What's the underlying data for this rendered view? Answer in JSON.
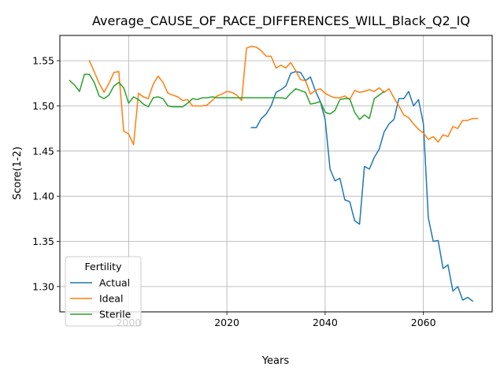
{
  "chart_data": {
    "type": "line",
    "title": "Average_CAUSE_OF_RACE_DIFFERENCES_WILL_Black_Q2_IQ",
    "xlabel": "Years",
    "ylabel": "Score(1-2)",
    "xlim": [
      1986,
      2074
    ],
    "ylim": [
      1.272,
      1.578
    ],
    "xticks": [
      2000,
      2020,
      2040,
      2060
    ],
    "yticks": [
      1.3,
      1.35,
      1.4,
      1.45,
      1.5,
      1.55
    ],
    "ytick_labels": [
      "1.30",
      "1.35",
      "1.40",
      "1.45",
      "1.50",
      "1.55"
    ],
    "grid": true,
    "legend": {
      "title": "Fertility",
      "position": "lower-left"
    },
    "series": [
      {
        "name": "Actual",
        "color": "#1f77b4",
        "points": [
          [
            2025,
            1.476
          ],
          [
            2026,
            1.476
          ],
          [
            2027,
            1.486
          ],
          [
            2028,
            1.491
          ],
          [
            2029,
            1.5
          ],
          [
            2030,
            1.515
          ],
          [
            2031,
            1.518
          ],
          [
            2032,
            1.522
          ],
          [
            2033,
            1.536
          ],
          [
            2034,
            1.538
          ],
          [
            2035,
            1.537
          ],
          [
            2036,
            1.528
          ],
          [
            2037,
            1.532
          ],
          [
            2038,
            1.517
          ],
          [
            2039,
            1.505
          ],
          [
            2040,
            1.485
          ],
          [
            2041,
            1.43
          ],
          [
            2042,
            1.417
          ],
          [
            2043,
            1.42
          ],
          [
            2044,
            1.396
          ],
          [
            2045,
            1.394
          ],
          [
            2046,
            1.373
          ],
          [
            2047,
            1.369
          ],
          [
            2048,
            1.433
          ],
          [
            2049,
            1.43
          ],
          [
            2050,
            1.443
          ],
          [
            2051,
            1.452
          ],
          [
            2052,
            1.471
          ],
          [
            2053,
            1.48
          ],
          [
            2054,
            1.485
          ],
          [
            2055,
            1.508
          ],
          [
            2056,
            1.508
          ],
          [
            2057,
            1.516
          ],
          [
            2058,
            1.5
          ],
          [
            2059,
            1.507
          ],
          [
            2060,
            1.48
          ],
          [
            2061,
            1.376
          ],
          [
            2062,
            1.35
          ],
          [
            2063,
            1.351
          ],
          [
            2064,
            1.32
          ],
          [
            2065,
            1.324
          ],
          [
            2066,
            1.295
          ],
          [
            2067,
            1.3
          ],
          [
            2068,
            1.285
          ],
          [
            2069,
            1.288
          ],
          [
            2070,
            1.284
          ]
        ]
      },
      {
        "name": "Ideal",
        "color": "#ff7f0e",
        "points": [
          [
            1992,
            1.55
          ],
          [
            1993,
            1.538
          ],
          [
            1994,
            1.525
          ],
          [
            1995,
            1.515
          ],
          [
            1996,
            1.525
          ],
          [
            1997,
            1.537
          ],
          [
            1998,
            1.538
          ],
          [
            1999,
            1.472
          ],
          [
            2000,
            1.469
          ],
          [
            2001,
            1.457
          ],
          [
            2002,
            1.514
          ],
          [
            2003,
            1.51
          ],
          [
            2004,
            1.508
          ],
          [
            2005,
            1.524
          ],
          [
            2006,
            1.533
          ],
          [
            2007,
            1.526
          ],
          [
            2008,
            1.514
          ],
          [
            2009,
            1.512
          ],
          [
            2010,
            1.51
          ],
          [
            2011,
            1.506
          ],
          [
            2012,
            1.507
          ],
          [
            2013,
            1.5
          ],
          [
            2014,
            1.5
          ],
          [
            2015,
            1.5
          ],
          [
            2016,
            1.501
          ],
          [
            2017,
            1.506
          ],
          [
            2018,
            1.511
          ],
          [
            2019,
            1.513
          ],
          [
            2020,
            1.516
          ],
          [
            2021,
            1.515
          ],
          [
            2022,
            1.512
          ],
          [
            2023,
            1.506
          ],
          [
            2024,
            1.564
          ],
          [
            2025,
            1.566
          ],
          [
            2026,
            1.565
          ],
          [
            2027,
            1.561
          ],
          [
            2028,
            1.555
          ],
          [
            2029,
            1.555
          ],
          [
            2030,
            1.542
          ],
          [
            2031,
            1.545
          ],
          [
            2032,
            1.542
          ],
          [
            2033,
            1.548
          ],
          [
            2034,
            1.539
          ],
          [
            2035,
            1.529
          ],
          [
            2036,
            1.528
          ],
          [
            2037,
            1.513
          ],
          [
            2038,
            1.517
          ],
          [
            2039,
            1.519
          ],
          [
            2040,
            1.514
          ],
          [
            2041,
            1.511
          ],
          [
            2042,
            1.509
          ],
          [
            2043,
            1.509
          ],
          [
            2044,
            1.511
          ],
          [
            2045,
            1.507
          ],
          [
            2046,
            1.517
          ],
          [
            2047,
            1.515
          ],
          [
            2048,
            1.516
          ],
          [
            2049,
            1.518
          ],
          [
            2050,
            1.516
          ],
          [
            2051,
            1.52
          ],
          [
            2052,
            1.515
          ],
          [
            2053,
            1.519
          ],
          [
            2054,
            1.509
          ],
          [
            2055,
            1.5
          ],
          [
            2056,
            1.49
          ],
          [
            2057,
            1.487
          ],
          [
            2058,
            1.48
          ],
          [
            2059,
            1.474
          ],
          [
            2060,
            1.47
          ],
          [
            2061,
            1.463
          ],
          [
            2062,
            1.466
          ],
          [
            2063,
            1.46
          ],
          [
            2064,
            1.468
          ],
          [
            2065,
            1.466
          ],
          [
            2066,
            1.477
          ],
          [
            2067,
            1.475
          ],
          [
            2068,
            1.484
          ],
          [
            2069,
            1.484
          ],
          [
            2070,
            1.486
          ],
          [
            2071,
            1.486
          ]
        ]
      },
      {
        "name": "Sterile",
        "color": "#2ca02c",
        "points": [
          [
            1988,
            1.528
          ],
          [
            1989,
            1.523
          ],
          [
            1990,
            1.516
          ],
          [
            1991,
            1.535
          ],
          [
            1992,
            1.535
          ],
          [
            1993,
            1.526
          ],
          [
            1994,
            1.511
          ],
          [
            1995,
            1.508
          ],
          [
            1996,
            1.512
          ],
          [
            1997,
            1.522
          ],
          [
            1998,
            1.526
          ],
          [
            1999,
            1.52
          ],
          [
            2000,
            1.503
          ],
          [
            2001,
            1.51
          ],
          [
            2002,
            1.507
          ],
          [
            2003,
            1.502
          ],
          [
            2004,
            1.499
          ],
          [
            2005,
            1.509
          ],
          [
            2006,
            1.51
          ],
          [
            2007,
            1.508
          ],
          [
            2008,
            1.5
          ],
          [
            2009,
            1.499
          ],
          [
            2010,
            1.499
          ],
          [
            2011,
            1.499
          ],
          [
            2012,
            1.503
          ],
          [
            2013,
            1.508
          ],
          [
            2014,
            1.507
          ],
          [
            2015,
            1.509
          ],
          [
            2016,
            1.509
          ],
          [
            2017,
            1.51
          ],
          [
            2018,
            1.509
          ],
          [
            2019,
            1.509
          ],
          [
            2020,
            1.509
          ],
          [
            2021,
            1.509
          ],
          [
            2022,
            1.509
          ],
          [
            2023,
            1.509
          ],
          [
            2024,
            1.509
          ],
          [
            2025,
            1.509
          ],
          [
            2026,
            1.509
          ],
          [
            2027,
            1.509
          ],
          [
            2028,
            1.509
          ],
          [
            2029,
            1.509
          ],
          [
            2030,
            1.509
          ],
          [
            2031,
            1.509
          ],
          [
            2032,
            1.508
          ],
          [
            2033,
            1.514
          ],
          [
            2034,
            1.519
          ],
          [
            2035,
            1.517
          ],
          [
            2036,
            1.515
          ],
          [
            2037,
            1.502
          ],
          [
            2038,
            1.503
          ],
          [
            2039,
            1.505
          ],
          [
            2040,
            1.493
          ],
          [
            2041,
            1.491
          ],
          [
            2042,
            1.495
          ],
          [
            2043,
            1.507
          ],
          [
            2044,
            1.508
          ],
          [
            2045,
            1.508
          ],
          [
            2046,
            1.493
          ],
          [
            2047,
            1.485
          ],
          [
            2048,
            1.49
          ],
          [
            2049,
            1.486
          ],
          [
            2050,
            1.508
          ],
          [
            2051,
            1.512
          ],
          [
            2052,
            1.516
          ]
        ]
      }
    ]
  }
}
